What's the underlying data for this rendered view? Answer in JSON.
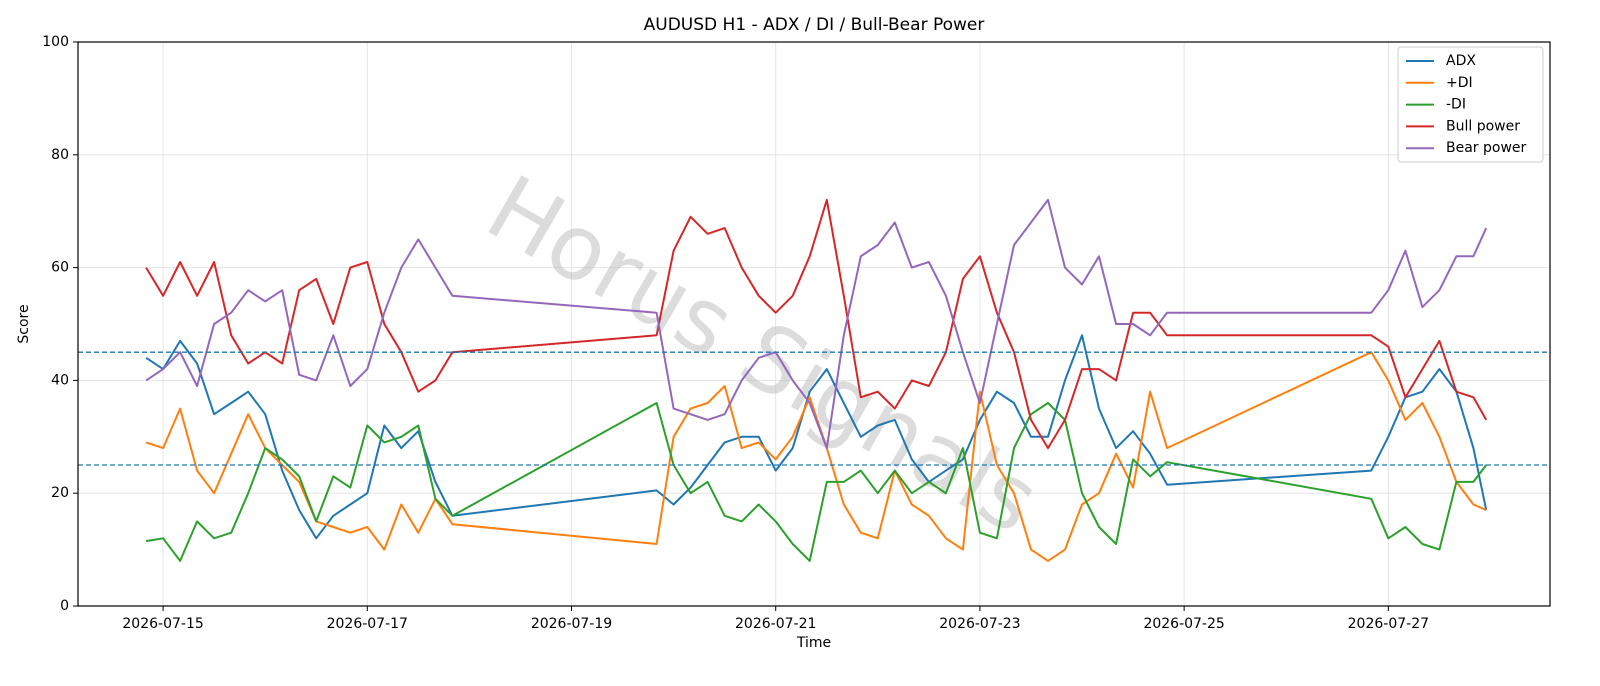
{
  "chart_data": {
    "type": "line",
    "title": "AUDUSD H1 - ADX / DI / Bull-Bear Power",
    "xlabel": "Time",
    "ylabel": "Score",
    "watermark": "Horus Signals",
    "x": [
      "2026-07-14 20:00",
      "2026-07-15 00:00",
      "2026-07-15 04:00",
      "2026-07-15 08:00",
      "2026-07-15 12:00",
      "2026-07-15 16:00",
      "2026-07-15 20:00",
      "2026-07-16 00:00",
      "2026-07-16 04:00",
      "2026-07-16 08:00",
      "2026-07-16 12:00",
      "2026-07-16 16:00",
      "2026-07-16 20:00",
      "2026-07-17 00:00",
      "2026-07-17 04:00",
      "2026-07-17 08:00",
      "2026-07-17 12:00",
      "2026-07-17 16:00",
      "2026-07-17 20:00",
      "2026-07-19 20:00",
      "2026-07-20 00:00",
      "2026-07-20 04:00",
      "2026-07-20 08:00",
      "2026-07-20 12:00",
      "2026-07-20 16:00",
      "2026-07-20 20:00",
      "2026-07-21 00:00",
      "2026-07-21 04:00",
      "2026-07-21 08:00",
      "2026-07-21 12:00",
      "2026-07-21 16:00",
      "2026-07-21 20:00",
      "2026-07-22 00:00",
      "2026-07-22 04:00",
      "2026-07-22 08:00",
      "2026-07-22 12:00",
      "2026-07-22 16:00",
      "2026-07-22 20:00",
      "2026-07-23 00:00",
      "2026-07-23 04:00",
      "2026-07-23 08:00",
      "2026-07-23 12:00",
      "2026-07-23 16:00",
      "2026-07-23 20:00",
      "2026-07-24 00:00",
      "2026-07-24 04:00",
      "2026-07-24 08:00",
      "2026-07-24 12:00",
      "2026-07-24 16:00",
      "2026-07-24 20:00",
      "2026-07-26 20:00",
      "2026-07-27 00:00",
      "2026-07-27 04:00",
      "2026-07-27 08:00",
      "2026-07-27 12:00",
      "2026-07-27 16:00",
      "2026-07-27 20:00",
      "2026-07-27 23:00"
    ],
    "series": [
      {
        "name": "ADX",
        "color": "#1f77b4",
        "values": [
          44,
          42,
          47,
          43,
          34,
          36,
          38,
          34,
          24,
          17,
          12,
          16,
          18,
          20,
          32,
          28,
          31,
          22,
          16,
          20.5,
          18,
          21,
          25,
          29,
          30,
          30,
          24,
          28,
          38,
          42,
          36,
          30,
          32,
          33,
          26,
          22,
          24,
          26,
          33,
          38,
          36,
          30,
          30,
          40,
          48,
          35,
          28,
          31,
          27,
          21.5,
          24,
          30,
          37,
          38,
          42,
          38,
          28,
          17
        ]
      },
      {
        "name": "+DI",
        "color": "#ff7f0e",
        "values": [
          29,
          28,
          35,
          24,
          20,
          27,
          34,
          28,
          25,
          22,
          15,
          14,
          13,
          14,
          10,
          18,
          13,
          19,
          14.5,
          11,
          30,
          35,
          36,
          39,
          28,
          29,
          26,
          30,
          37,
          28,
          18,
          13,
          12,
          24,
          18,
          16,
          12,
          10,
          38,
          25,
          20,
          10,
          8,
          10,
          18,
          20,
          27,
          21,
          38,
          28,
          45,
          40,
          33,
          36,
          30,
          22,
          18,
          17
        ]
      },
      {
        "name": "-DI",
        "color": "#2ca02c",
        "values": [
          11.5,
          12,
          8,
          15,
          12,
          13,
          20,
          28,
          26,
          23,
          15,
          23,
          21,
          32,
          29,
          30,
          32,
          19,
          16,
          36,
          25,
          20,
          22,
          16,
          15,
          18,
          15,
          11,
          8,
          22,
          22,
          24,
          20,
          24,
          20,
          22,
          20,
          28,
          13,
          12,
          28,
          34,
          36,
          33,
          20,
          14,
          11,
          26,
          23,
          25.5,
          19,
          12,
          14,
          11,
          10,
          22,
          22,
          25
        ]
      },
      {
        "name": "Bull power",
        "color": "#d62728",
        "values": [
          60,
          55,
          61,
          55,
          61,
          48,
          43,
          45,
          43,
          56,
          58,
          50,
          60,
          61,
          50,
          45,
          38,
          40,
          45,
          48,
          63,
          69,
          66,
          67,
          60,
          55,
          52,
          55,
          62,
          72,
          55,
          37,
          38,
          35,
          40,
          39,
          45,
          58,
          62,
          52,
          45,
          33,
          28,
          33,
          42,
          42,
          40,
          52,
          52,
          48,
          48,
          46,
          37,
          42,
          47,
          38,
          37,
          33
        ]
      },
      {
        "name": "Bear power",
        "color": "#9467bd",
        "values": [
          40,
          42,
          45,
          39,
          50,
          52,
          56,
          54,
          56,
          41,
          40,
          48,
          39,
          42,
          52,
          60,
          65,
          60,
          55,
          52,
          35,
          34,
          33,
          34,
          40,
          44,
          45,
          40,
          36,
          28,
          48,
          62,
          64,
          68,
          60,
          61,
          55,
          45,
          36,
          50,
          64,
          68,
          72,
          60,
          57,
          62,
          50,
          50,
          48,
          52,
          52,
          56,
          63,
          53,
          56,
          62,
          62,
          67
        ]
      }
    ],
    "hlines": [
      {
        "value": 45,
        "color": "#1f77b4"
      },
      {
        "value": 25,
        "color": "#1f77b4"
      }
    ],
    "xlim": [
      "2026-07-14 04:00",
      "2026-07-28 14:00"
    ],
    "xticks": [
      "2026-07-15",
      "2026-07-17",
      "2026-07-19",
      "2026-07-21",
      "2026-07-23",
      "2026-07-25",
      "2026-07-27"
    ],
    "ylim": [
      0,
      100
    ],
    "yticks": [
      0,
      20,
      40,
      60,
      80,
      100
    ],
    "grid": true,
    "legend": "upper right"
  }
}
